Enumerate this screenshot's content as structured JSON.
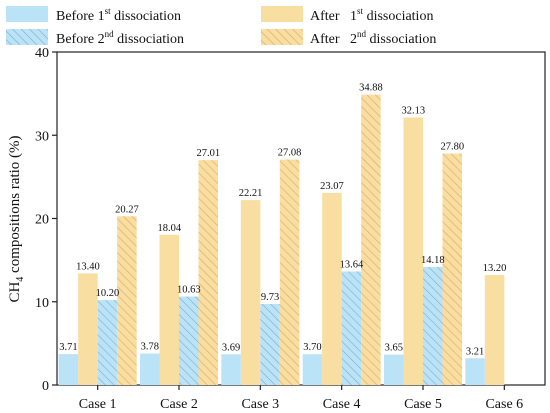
{
  "chart_data": {
    "type": "bar",
    "categories": [
      "Case 1",
      "Case 2",
      "Case 3",
      "Case 4",
      "Case 5",
      "Case 6"
    ],
    "series": [
      {
        "name": "Before 1st dissociation",
        "name_main": "Before 1",
        "name_sup": "st",
        "name_tail": " dissociation",
        "color": "#BBE3F8",
        "hatch": false,
        "values": [
          3.71,
          3.78,
          3.69,
          3.7,
          3.65,
          3.21
        ]
      },
      {
        "name": "After 1st dissociation",
        "name_main": "After   1",
        "name_sup": "st",
        "name_tail": " dissociation",
        "color": "#F8DEA0",
        "hatch": false,
        "values": [
          13.4,
          18.04,
          22.21,
          23.07,
          32.13,
          13.2
        ]
      },
      {
        "name": "Before 2nd dissociation",
        "name_main": "Before 2",
        "name_sup": "nd",
        "name_tail": " dissociation",
        "color": "#BBE3F8",
        "hatch": true,
        "hatch_color": "#7FA9C6",
        "values": [
          10.2,
          10.63,
          9.73,
          13.64,
          14.18,
          null
        ]
      },
      {
        "name": "After 2nd dissociation",
        "name_main": "After   2",
        "name_sup": "nd",
        "name_tail": " dissociation",
        "color": "#F8DEA0",
        "hatch": true,
        "hatch_color": "#E0A862",
        "values": [
          20.27,
          27.01,
          27.08,
          34.88,
          27.8,
          null
        ]
      }
    ],
    "data_labels": [
      [
        "3.71",
        "3.78",
        "3.69",
        "3.70",
        "3.65",
        "3.21"
      ],
      [
        "13.40",
        "18.04",
        "22.21",
        "23.07",
        "32.13",
        "13.20"
      ],
      [
        "10.20",
        "10.63",
        "9.73",
        "13.64",
        "14.18",
        ""
      ],
      [
        "20.27",
        "27.01",
        "27.08",
        "34.88",
        "27.80",
        ""
      ]
    ],
    "ylabel_main": "CH",
    "ylabel_sub": "4",
    "ylabel_tail": " compositions ratio (%)",
    "ylim": [
      0,
      40
    ],
    "yticks": [
      0,
      10,
      20,
      30,
      40
    ],
    "ytick_labels": [
      "0",
      "10",
      "20",
      "30",
      "40"
    ],
    "grid": false,
    "legend_position": "top"
  }
}
